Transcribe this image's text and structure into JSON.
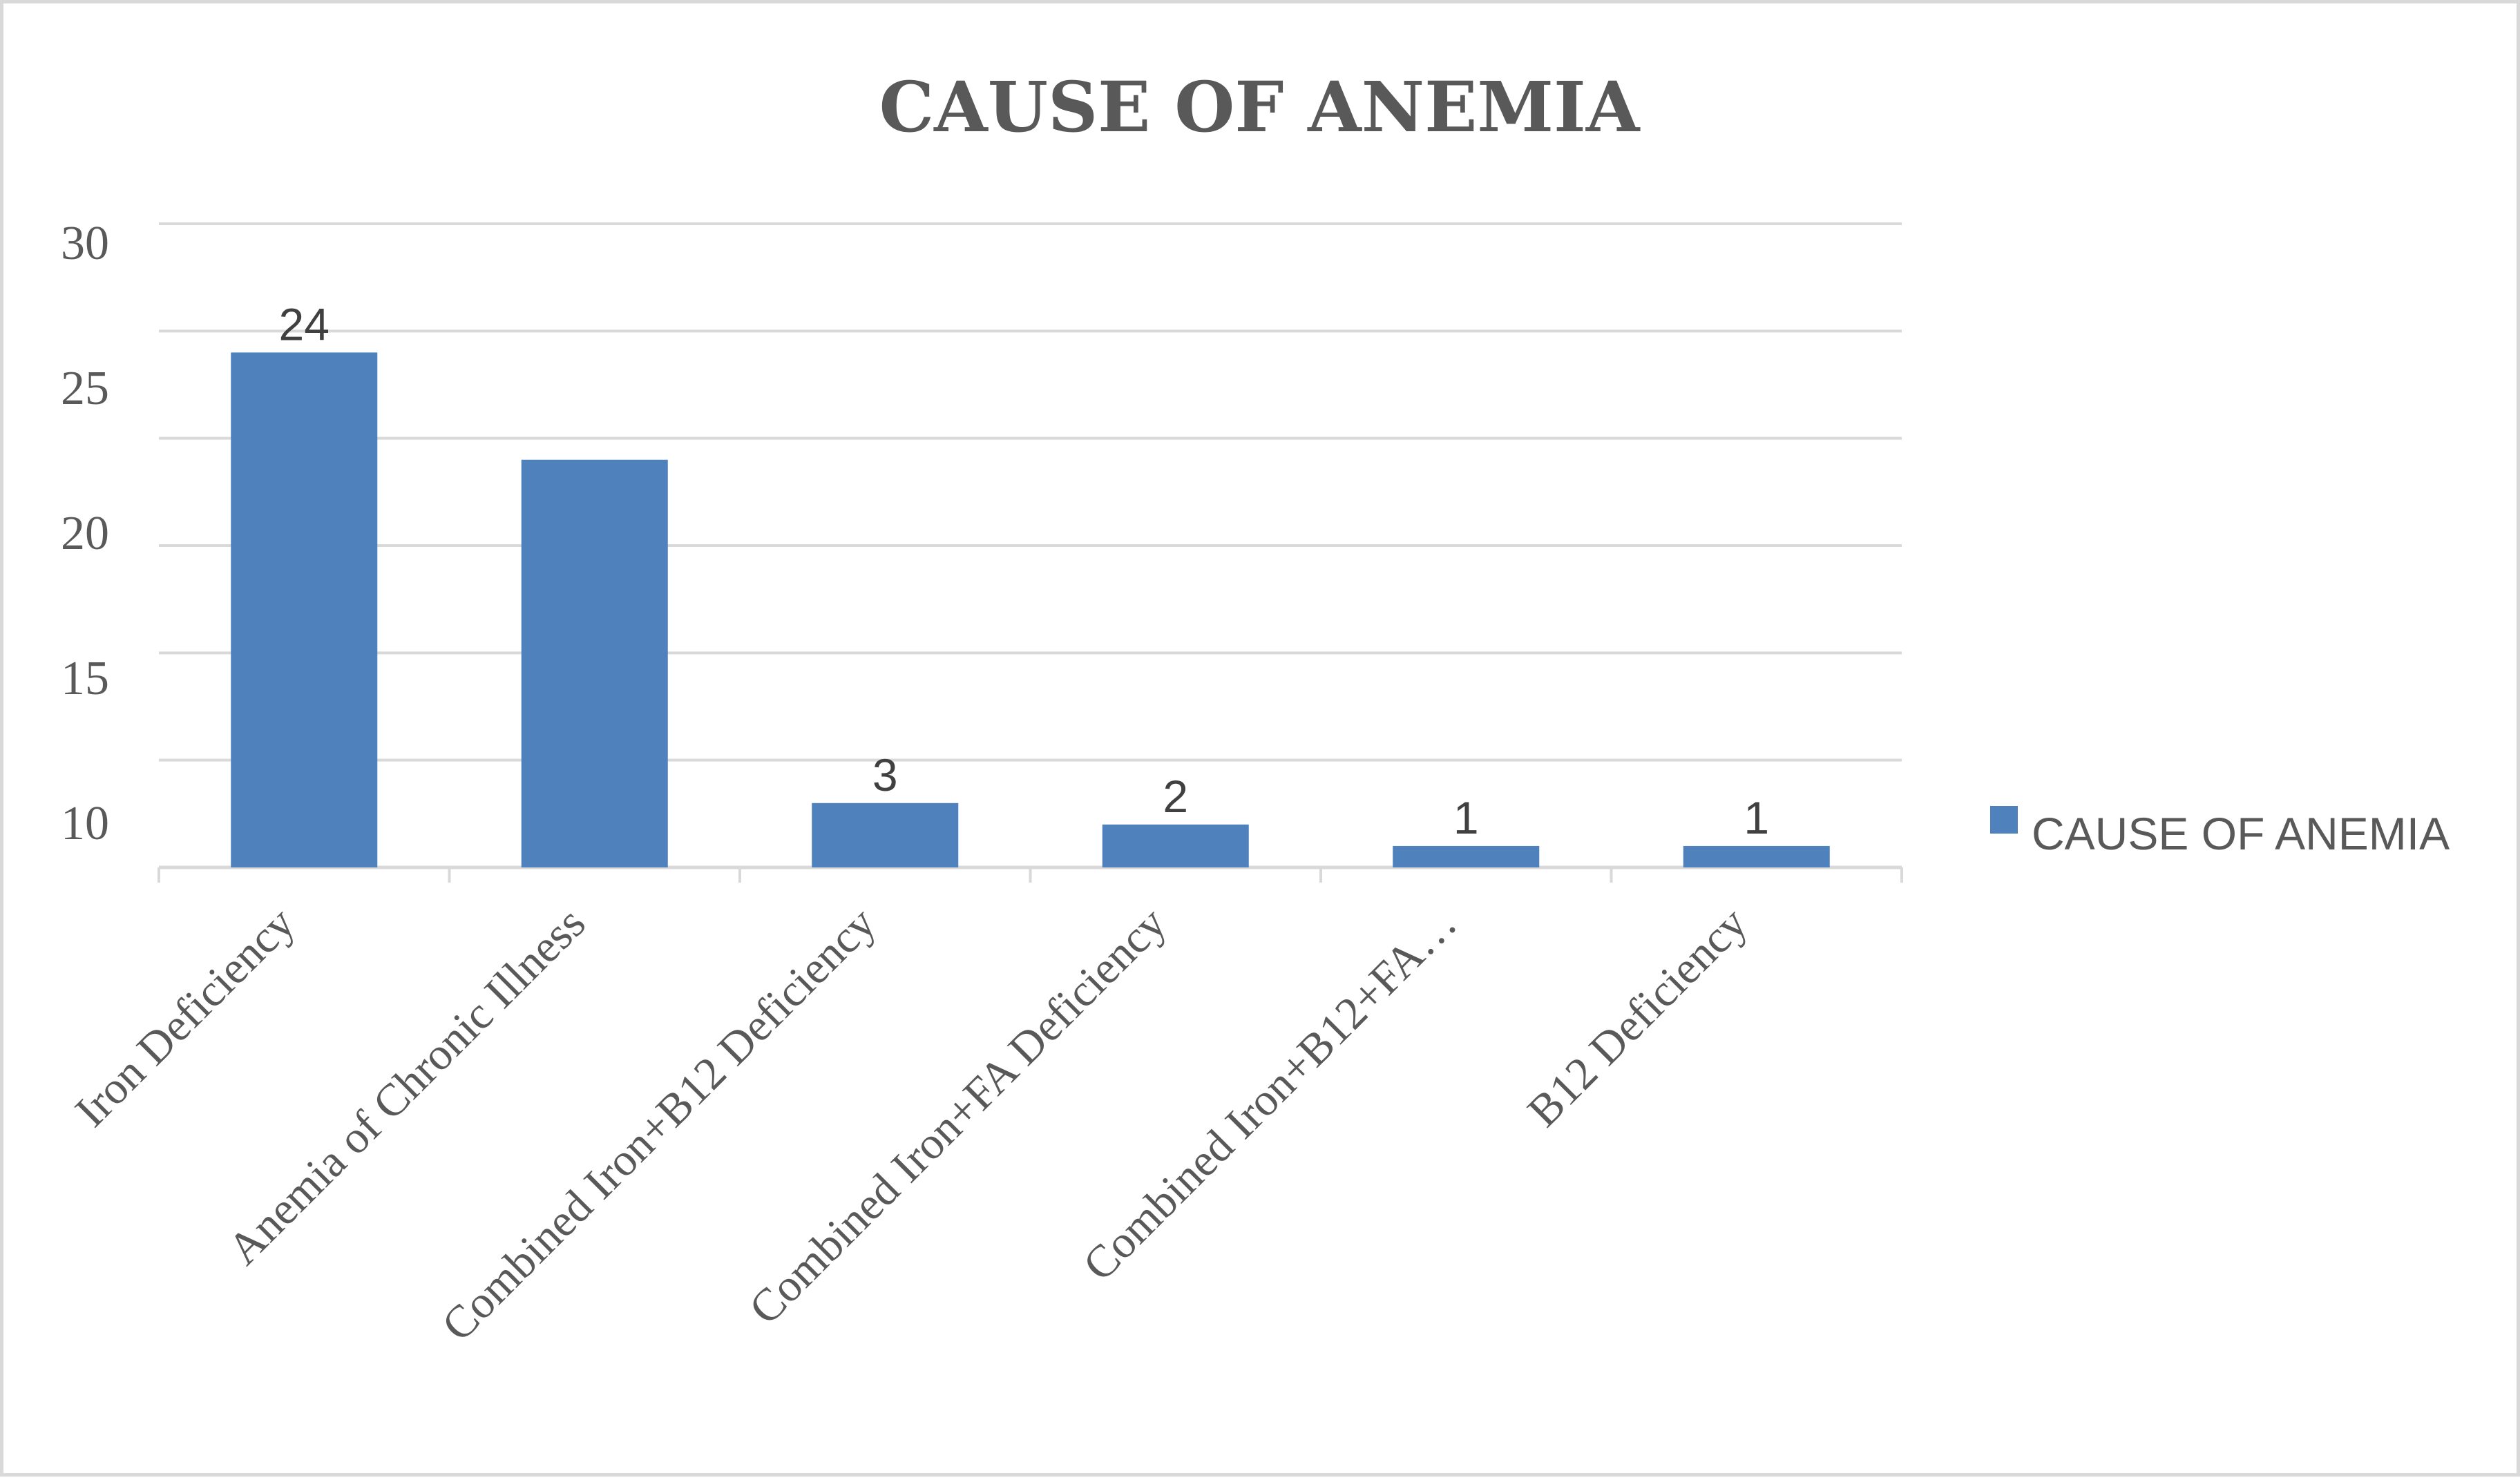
{
  "chart_data": {
    "type": "bar",
    "title": "CAUSE OF ANEMIA",
    "categories": [
      "Iron Deficiency",
      "Anemia of Chronic Illness",
      "Combined Iron+B12 Deficiency",
      "Combined Iron+FA Deficiency",
      "Combined Iron+B12+FA…",
      "B12 Deficiency"
    ],
    "series": [
      {
        "name": "CAUSE OF ANEMIA",
        "values": [
          24,
          19,
          3,
          2,
          1,
          1
        ],
        "data_labels": [
          "24",
          "",
          "3",
          "2",
          "1",
          "1"
        ],
        "color": "#4f81bd"
      }
    ],
    "y_tick_labels": [
      "10",
      "15",
      "20",
      "25",
      "30"
    ],
    "ylim": [
      0,
      30
    ],
    "grid": true,
    "legend_position": "right",
    "xlabel": "",
    "ylabel": ""
  }
}
